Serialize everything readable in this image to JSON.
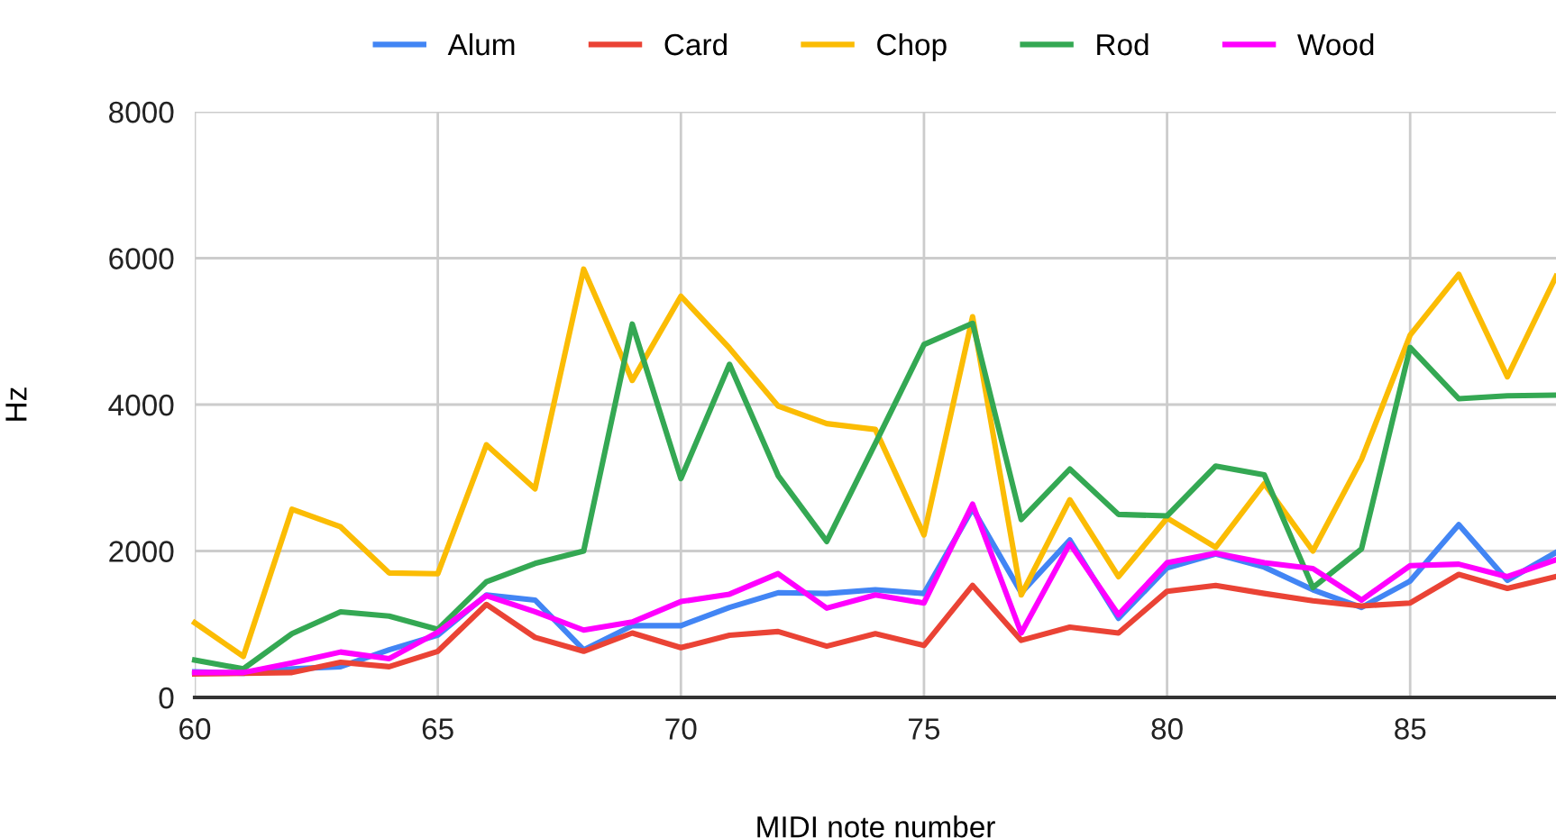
{
  "chart_data": {
    "type": "line",
    "xlabel": "MIDI note number",
    "ylabel": "Hz",
    "x": [
      60,
      61,
      62,
      63,
      64,
      65,
      66,
      67,
      68,
      69,
      70,
      71,
      72,
      73,
      74,
      75,
      76,
      77,
      78,
      79,
      80,
      81,
      82,
      83,
      84,
      85,
      86,
      87,
      88
    ],
    "series": [
      {
        "name": "Alum",
        "color": "#4285f4",
        "values": [
          350,
          330,
          390,
          420,
          650,
          850,
          1400,
          1330,
          650,
          980,
          980,
          1230,
          1430,
          1420,
          1470,
          1420,
          2580,
          1430,
          2150,
          1080,
          1770,
          1960,
          1780,
          1470,
          1230,
          1590,
          2360,
          1600,
          1980
        ]
      },
      {
        "name": "Card",
        "color": "#ea4335",
        "values": [
          320,
          330,
          340,
          480,
          420,
          630,
          1270,
          820,
          630,
          880,
          680,
          850,
          900,
          700,
          870,
          710,
          1530,
          780,
          960,
          880,
          1450,
          1530,
          1420,
          1320,
          1250,
          1290,
          1680,
          1490,
          1650
        ]
      },
      {
        "name": "Chop",
        "color": "#fbbc04",
        "values": [
          1020,
          560,
          2570,
          2330,
          1700,
          1690,
          3450,
          2850,
          5850,
          4330,
          5480,
          4770,
          3980,
          3740,
          3660,
          2220,
          5200,
          1400,
          2700,
          1650,
          2450,
          2050,
          2920,
          2000,
          3250,
          4950,
          5780,
          4380,
          5750
        ]
      },
      {
        "name": "Rod",
        "color": "#34a853",
        "values": [
          510,
          390,
          870,
          1170,
          1110,
          930,
          1580,
          1830,
          2000,
          5100,
          2990,
          4550,
          3030,
          2130,
          3470,
          4820,
          5110,
          2430,
          3120,
          2500,
          2480,
          3160,
          3040,
          1500,
          2030,
          4780,
          4080,
          4120,
          4130
        ]
      },
      {
        "name": "Wood",
        "color": "#ff00ff",
        "values": [
          340,
          340,
          470,
          620,
          530,
          890,
          1390,
          1170,
          920,
          1030,
          1310,
          1410,
          1690,
          1220,
          1400,
          1290,
          2640,
          880,
          2100,
          1130,
          1840,
          1970,
          1840,
          1760,
          1330,
          1800,
          1820,
          1650,
          1880
        ]
      }
    ],
    "xlim": [
      60,
      88
    ],
    "xticks": [
      60,
      65,
      70,
      75,
      80,
      85
    ],
    "ylim": [
      0,
      8000
    ],
    "yticks": [
      0,
      2000,
      4000,
      6000,
      8000
    ],
    "grid": true,
    "legend": "top",
    "line_style": "solid",
    "marker": "none"
  }
}
